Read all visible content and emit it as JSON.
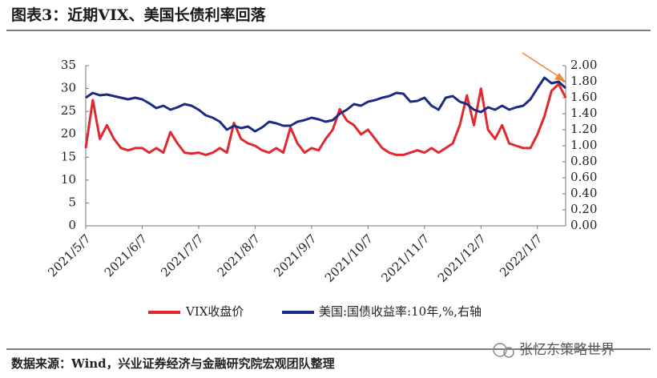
{
  "chart_data": {
    "type": "line",
    "title": "图表3：近期VIX、美国长债利率回落",
    "source": "数据来源：Wind，兴业证券经济与金融研究院宏观团队整理",
    "watermark": "张忆东策略世界",
    "categories": [
      "2021/5/7",
      null,
      null,
      null,
      null,
      null,
      null,
      null,
      "2021/6/7",
      null,
      null,
      null,
      null,
      null,
      null,
      null,
      "2021/7/7",
      null,
      null,
      null,
      null,
      null,
      null,
      null,
      "2021/8/7",
      null,
      null,
      null,
      null,
      null,
      null,
      null,
      "2021/9/7",
      null,
      null,
      null,
      null,
      null,
      null,
      null,
      "2021/10/7",
      null,
      null,
      null,
      null,
      null,
      null,
      null,
      "2021/11/7",
      null,
      null,
      null,
      null,
      null,
      null,
      null,
      "2021/12/7",
      null,
      null,
      null,
      null,
      null,
      null,
      null,
      "2022/1/7",
      null,
      null,
      null,
      null
    ],
    "series": [
      {
        "name": "VIX收盘价",
        "color": "#e0282e",
        "axis": "y",
        "values": [
          17,
          27.5,
          19,
          22,
          19,
          17,
          16.5,
          17,
          17,
          16,
          17,
          16,
          20.5,
          18,
          16,
          15.8,
          16,
          15.5,
          16,
          17,
          16,
          22.5,
          19,
          18,
          17.5,
          16.5,
          16,
          17,
          16,
          21.5,
          18,
          16,
          17,
          16.5,
          19,
          21,
          25.5,
          23,
          22,
          20,
          21,
          19,
          17,
          16,
          15.5,
          15.5,
          16,
          16.5,
          16,
          17,
          16,
          17,
          18,
          22,
          28.5,
          22,
          30,
          21,
          19,
          22,
          18,
          17.5,
          17,
          17,
          20,
          24,
          29.5,
          31,
          28
        ]
      },
      {
        "name": "美国:国债收益率:10年,%,右轴",
        "color": "#1b2a85",
        "axis": "y2",
        "values": [
          1.6,
          1.66,
          1.63,
          1.64,
          1.62,
          1.6,
          1.58,
          1.6,
          1.58,
          1.53,
          1.47,
          1.5,
          1.45,
          1.48,
          1.52,
          1.5,
          1.45,
          1.38,
          1.35,
          1.3,
          1.2,
          1.25,
          1.22,
          1.24,
          1.18,
          1.23,
          1.3,
          1.28,
          1.25,
          1.25,
          1.3,
          1.32,
          1.35,
          1.33,
          1.3,
          1.32,
          1.4,
          1.45,
          1.52,
          1.5,
          1.55,
          1.57,
          1.6,
          1.62,
          1.66,
          1.65,
          1.55,
          1.56,
          1.6,
          1.5,
          1.45,
          1.6,
          1.62,
          1.55,
          1.52,
          1.45,
          1.42,
          1.48,
          1.45,
          1.5,
          1.45,
          1.48,
          1.5,
          1.58,
          1.72,
          1.85,
          1.78,
          1.8,
          1.72
        ]
      }
    ],
    "ylim": [
      0,
      35
    ],
    "yticks": [
      0,
      5,
      10,
      15,
      20,
      25,
      30,
      35
    ],
    "y2lim": [
      0,
      2
    ],
    "y2ticks": [
      {
        "value": 0,
        "label": "0.00"
      },
      {
        "value": 0.2,
        "label": "0.20"
      },
      {
        "value": 0.4,
        "label": "0.40"
      },
      {
        "value": 0.6,
        "label": "0.60"
      },
      {
        "value": 0.8,
        "label": "0.80"
      },
      {
        "value": 1,
        "label": "1.00"
      },
      {
        "value": 1.2,
        "label": "1.20"
      },
      {
        "value": 1.4,
        "label": "1.40"
      },
      {
        "value": 1.6,
        "label": "1.60"
      },
      {
        "value": 1.8,
        "label": "1.80"
      },
      {
        "value": 2,
        "label": "2.00"
      }
    ],
    "legend": "bottom"
  }
}
